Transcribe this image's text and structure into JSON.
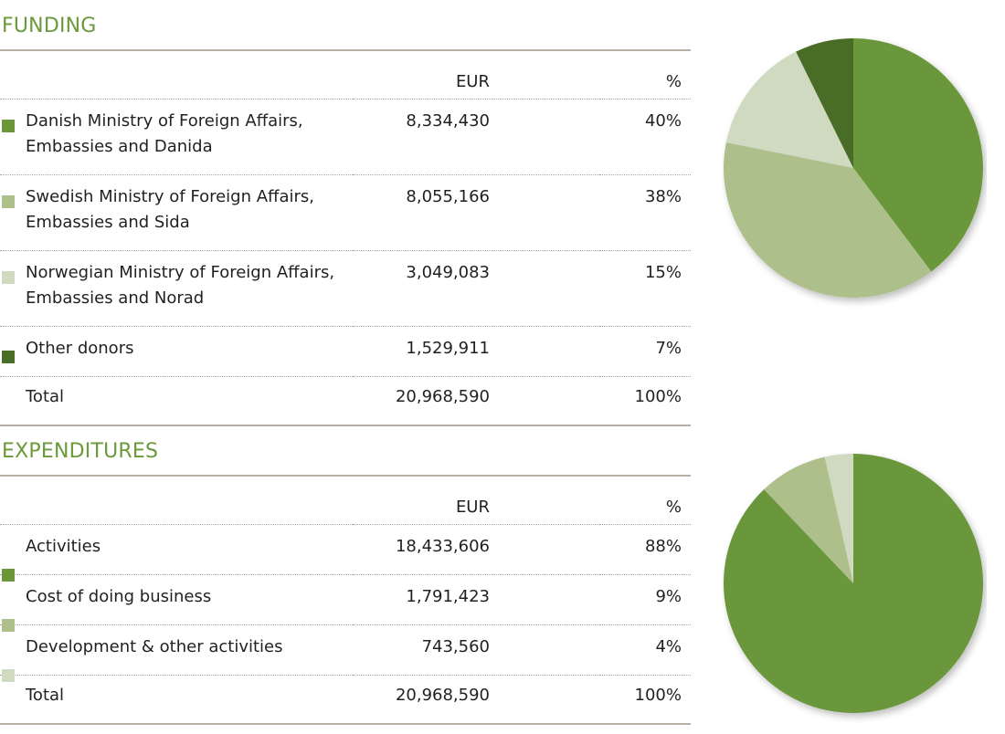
{
  "colors": {
    "title": "#6a9a3a",
    "dark_green": "#4a6d27",
    "mid_green": "#6b973a",
    "light_green": "#adc08c",
    "pale_green": "#d0dac0"
  },
  "funding": {
    "title": "FUNDING",
    "col_eur": "EUR",
    "col_pct": "%",
    "rows": [
      {
        "line1": "Danish Ministry of Foreign Affairs,",
        "line2": "Embassies and Danida",
        "eur": "8,334,430",
        "pct": "40%",
        "color": "#6b973a"
      },
      {
        "line1": "Swedish Ministry of Foreign Affairs,",
        "line2": "Embassies and Sida",
        "eur": "8,055,166",
        "pct": "38%",
        "color": "#adc08c"
      },
      {
        "line1": "Norwegian Ministry of Foreign Affairs,",
        "line2": "Embassies and Norad",
        "eur": "3,049,083",
        "pct": "15%",
        "color": "#d0dac0"
      },
      {
        "line1": "Other donors",
        "line2": "",
        "eur": "1,529,911",
        "pct": "7%",
        "color": "#4a6d27"
      }
    ],
    "total": {
      "label": "Total",
      "eur": "20,968,590",
      "pct": "100%"
    }
  },
  "expenditures": {
    "title": "EXPENDITURES",
    "col_eur": "EUR",
    "col_pct": "%",
    "rows": [
      {
        "label": "Activities",
        "eur": "18,433,606",
        "pct": "88%",
        "color": "#6b973a"
      },
      {
        "label": "Cost of doing business",
        "eur": "1,791,423",
        "pct": "9%",
        "color": "#adc08c"
      },
      {
        "label": "Development & other activities",
        "eur": "743,560",
        "pct": "4%",
        "color": "#d0dac0"
      }
    ],
    "total": {
      "label": "Total",
      "eur": "20,968,590",
      "pct": "100%"
    }
  },
  "chart_data": [
    {
      "type": "pie",
      "title": "FUNDING",
      "categories": [
        "Danish Ministry of Foreign Affairs, Embassies and Danida",
        "Swedish Ministry of Foreign Affairs, Embassies and Sida",
        "Norwegian Ministry of Foreign Affairs, Embassies and Norad",
        "Other donors"
      ],
      "values": [
        8334430,
        8055166,
        3049083,
        1529911
      ],
      "percent": [
        40,
        38,
        15,
        7
      ],
      "colors": [
        "#6b973a",
        "#adc08c",
        "#d0dac0",
        "#4a6d27"
      ],
      "start": "12 o'clock",
      "direction": "clockwise",
      "legend": "left"
    },
    {
      "type": "pie",
      "title": "EXPENDITURES",
      "categories": [
        "Activities",
        "Cost of doing business",
        "Development & other activities"
      ],
      "values": [
        18433606,
        1791423,
        743560
      ],
      "percent": [
        88,
        9,
        4
      ],
      "colors": [
        "#6b973a",
        "#adc08c",
        "#d0dac0"
      ],
      "start": "12 o'clock",
      "direction": "clockwise",
      "legend": "left"
    }
  ]
}
